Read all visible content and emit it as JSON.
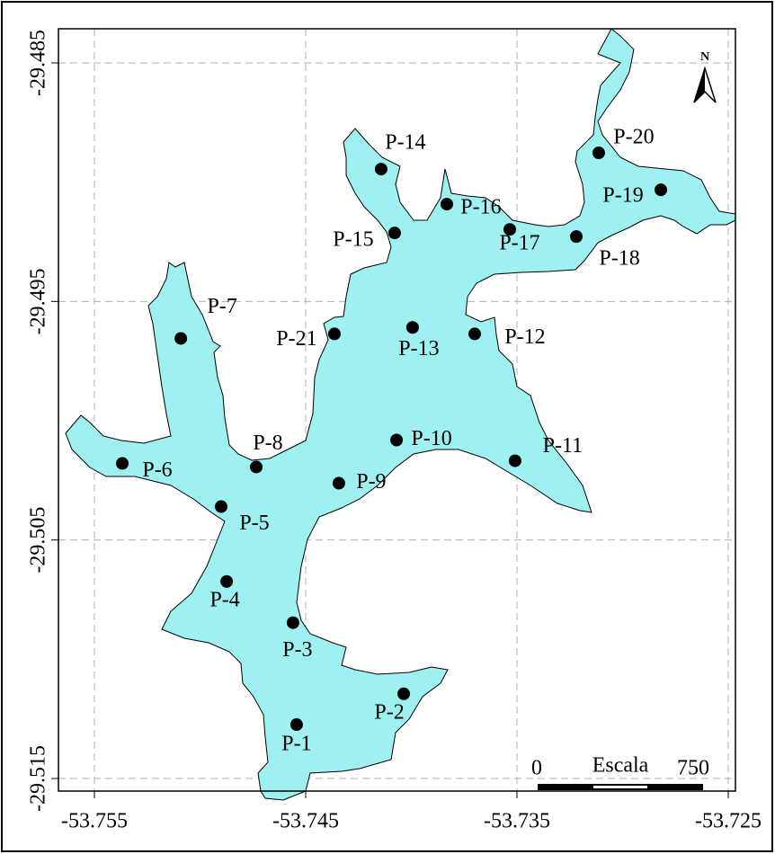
{
  "map": {
    "x_ticks": [
      -53.755,
      -53.745,
      -53.735,
      -53.725
    ],
    "y_ticks": [
      -29.485,
      -29.495,
      -29.505,
      -29.515
    ],
    "points": [
      {
        "label": "P-1",
        "lon": -53.74543,
        "lat": -29.51274
      },
      {
        "label": "P-2",
        "lon": -53.74036,
        "lat": -29.51145
      },
      {
        "label": "P-3",
        "lon": -53.7456,
        "lat": -29.50847
      },
      {
        "label": "P-4",
        "lon": -53.74874,
        "lat": -29.50674
      },
      {
        "label": "P-5",
        "lon": -53.749,
        "lat": -29.5036
      },
      {
        "label": "P-6",
        "lon": -53.75368,
        "lat": -29.50179
      },
      {
        "label": "P-7",
        "lon": -53.75091,
        "lat": -29.49655
      },
      {
        "label": "P-8",
        "lon": -53.74734,
        "lat": -29.50194
      },
      {
        "label": "P-9",
        "lon": -53.74343,
        "lat": -29.50262
      },
      {
        "label": "P-10",
        "lon": -53.7407,
        "lat": -29.50081
      },
      {
        "label": "P-11",
        "lon": -53.73509,
        "lat": -29.50168
      },
      {
        "label": "P-12",
        "lon": -53.737,
        "lat": -29.49636
      },
      {
        "label": "P-13",
        "lon": -53.73994,
        "lat": -29.49609
      },
      {
        "label": "P-14",
        "lon": -53.74143,
        "lat": -29.48945
      },
      {
        "label": "P-15",
        "lon": -53.74079,
        "lat": -29.49213
      },
      {
        "label": "P-16",
        "lon": -53.73832,
        "lat": -29.49092
      },
      {
        "label": "P-17",
        "lon": -53.73534,
        "lat": -29.49198
      },
      {
        "label": "P-18",
        "lon": -53.73219,
        "lat": -29.49228
      },
      {
        "label": "P-19",
        "lon": -53.72819,
        "lat": -29.49032
      },
      {
        "label": "P-20",
        "lon": -53.73113,
        "lat": -29.48877
      },
      {
        "label": "P-21",
        "lon": -53.74364,
        "lat": -29.49636
      }
    ],
    "scale_bar": {
      "start": 0,
      "title": "Escala",
      "end": 750
    },
    "north": "N"
  }
}
